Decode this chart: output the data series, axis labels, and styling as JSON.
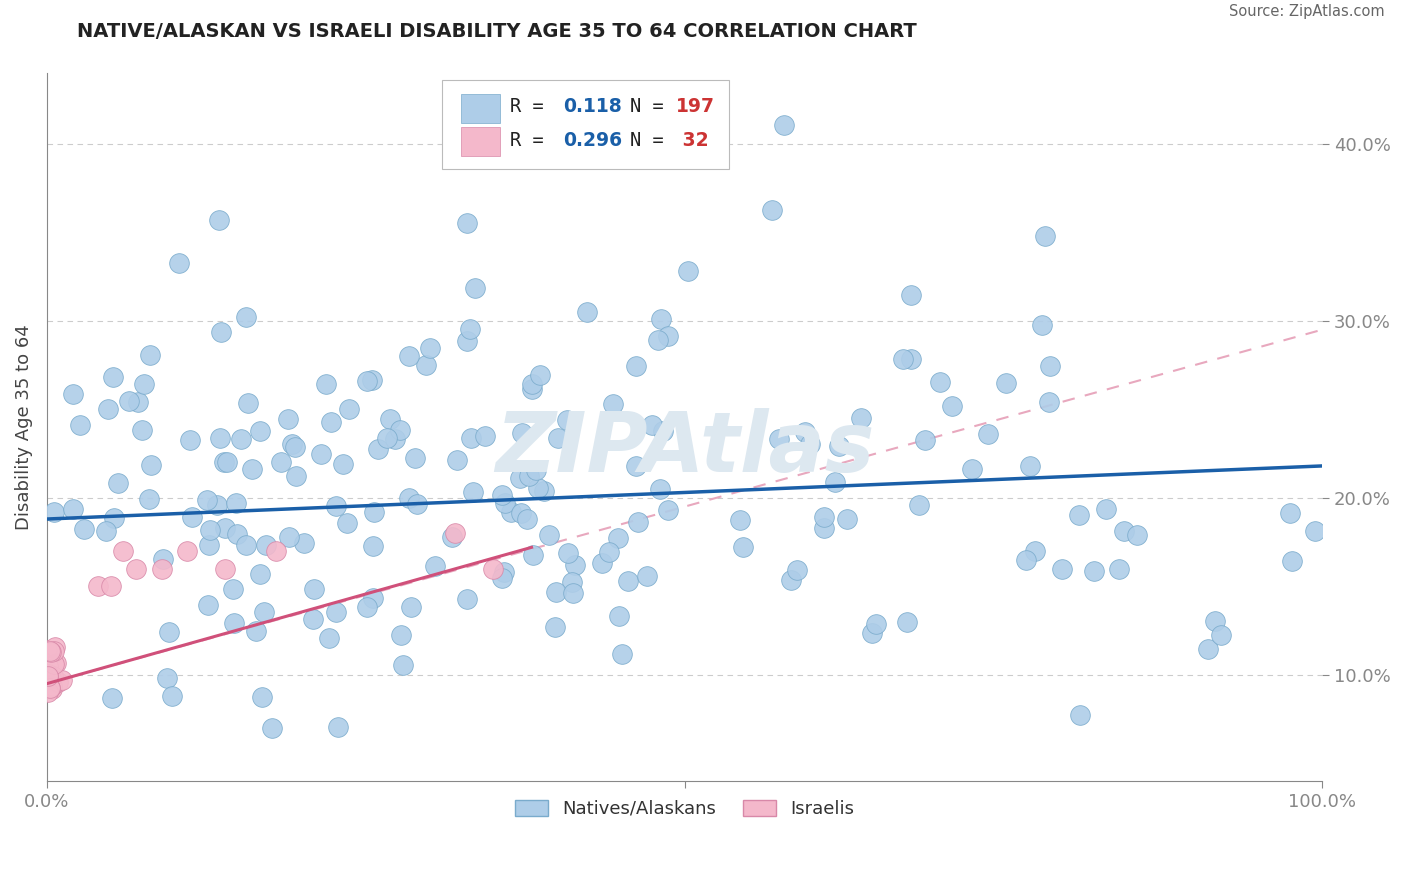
{
  "title": "NATIVE/ALASKAN VS ISRAELI DISABILITY AGE 35 TO 64 CORRELATION CHART",
  "source": "Source: ZipAtlas.com",
  "ylabel": "Disability Age 35 to 64",
  "yticks": [
    "10.0%",
    "20.0%",
    "30.0%",
    "40.0%"
  ],
  "ytick_vals": [
    0.1,
    0.2,
    0.3,
    0.4
  ],
  "xlim": [
    0.0,
    1.0
  ],
  "ylim": [
    0.04,
    0.44
  ],
  "blue_color": "#aecde8",
  "blue_edge_color": "#7aabcc",
  "pink_color": "#f4b8cb",
  "pink_edge_color": "#d888a8",
  "blue_line_color": "#1a5fa8",
  "pink_line_color": "#d0507a",
  "pink_dash_color": "#e8a8be",
  "background_color": "#ffffff",
  "watermark": "ZIPAtlas",
  "watermark_color": "#dde8f0",
  "grid_color": "#cccccc",
  "tick_color": "#4477aa",
  "title_color": "#222222",
  "source_color": "#666666",
  "legend_r_color": "#222222",
  "legend_val_color": "#1a5fa8",
  "legend_n_color": "#cc3333",
  "blue_scatter_seed": 77,
  "pink_scatter_seed": 88
}
